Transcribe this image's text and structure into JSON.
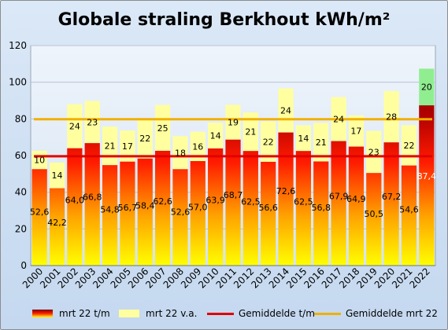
{
  "chart_data": {
    "type": "bar",
    "title": "Globale straling Berkhout kWh/m²",
    "categories": [
      "2000",
      "2001",
      "2002",
      "2003",
      "2004",
      "2005",
      "2006",
      "2007",
      "2008",
      "2009",
      "2010",
      "2011",
      "2012",
      "2013",
      "2014",
      "2015",
      "2016",
      "2017",
      "2018",
      "2019",
      "2020",
      "2021",
      "2022"
    ],
    "series": [
      {
        "name": "mrt 22 t/m",
        "values": [
          52.6,
          42.2,
          64.0,
          66.8,
          54.8,
          56.7,
          58.4,
          62.6,
          52.6,
          57.0,
          63.9,
          68.7,
          62.5,
          56.6,
          72.6,
          62.5,
          56.8,
          67.9,
          64.9,
          50.5,
          67.2,
          54.6,
          87.4
        ],
        "labels": [
          "52,6",
          "42,2",
          "64,0",
          "66,8",
          "54,8",
          "56,7",
          "58,4",
          "62,6",
          "52,6",
          "57,0",
          "63,9",
          "68,7",
          "62,5",
          "56,6",
          "72,6",
          "62,5",
          "56,8",
          "67,9",
          "64,9",
          "50,5",
          "67,2",
          "54,6",
          "87,4"
        ],
        "color_top": "#7a0000",
        "color_mid": "#ff0000",
        "color_bottom": "#ffff00"
      },
      {
        "name": "mrt 22 v.a.",
        "values": [
          10,
          14,
          24,
          23,
          21,
          17,
          22,
          25,
          18,
          16,
          14,
          19,
          21,
          22,
          24,
          14,
          21,
          24,
          17,
          23,
          28,
          22,
          20
        ],
        "labels": [
          "10",
          "14",
          "24",
          "23",
          "21",
          "17",
          "22",
          "25",
          "18",
          "16",
          "14",
          "19",
          "21",
          "22",
          "24",
          "14",
          "21",
          "24",
          "17",
          "23",
          "28",
          "22",
          "20"
        ],
        "color": "#ffffa0",
        "color_last": "#90ee90"
      }
    ],
    "lines": [
      {
        "name": "Gemiddelde t/m",
        "value": 59.6,
        "color": "#e00000"
      },
      {
        "name": "Gemiddelde mrt 22",
        "value": 79.8,
        "color": "#f0b000"
      }
    ],
    "ylim": [
      0,
      120
    ],
    "yticks": [
      "0",
      "20",
      "40",
      "60",
      "80",
      "100",
      "120"
    ],
    "grid": true,
    "legend_position": "bottom"
  },
  "legend": {
    "item1": "mrt 22 t/m",
    "item2": "mrt 22 v.a.",
    "item3": "Gemiddelde t/m",
    "item4": "Gemiddelde mrt 22"
  }
}
